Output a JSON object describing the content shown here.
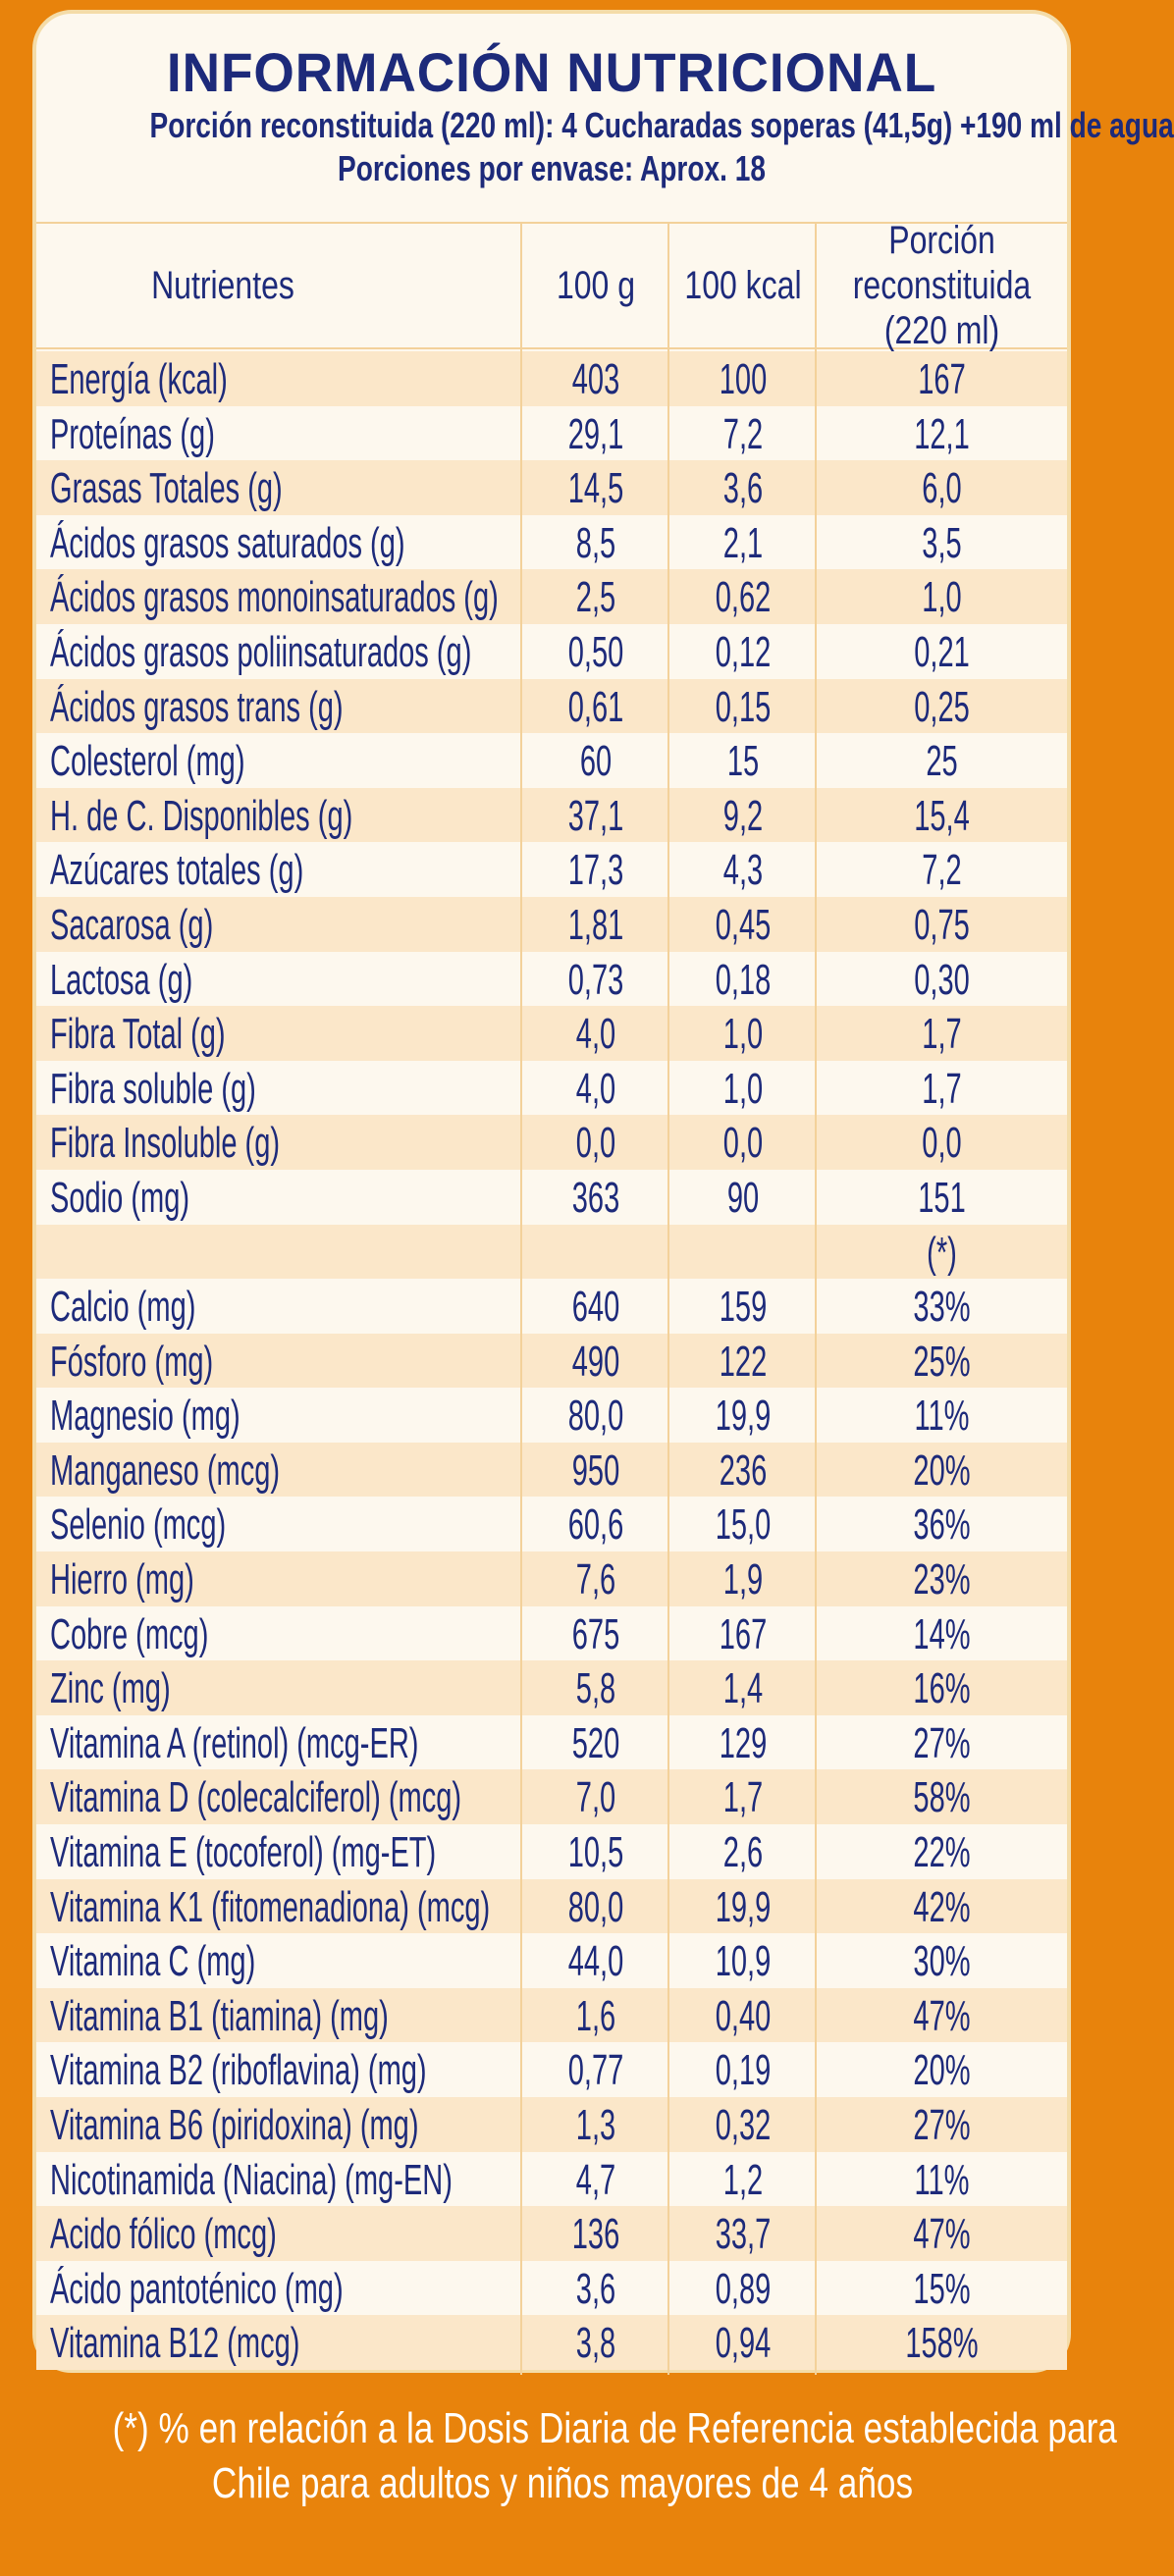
{
  "header": {
    "title": "INFORMACIÓN NUTRICIONAL",
    "portion_line": "Porción reconstituida (220 ml): 4 Cucharadas soperas (41,5g) +190 ml de agua",
    "servings_line": "Porciones por envase: Aprox. 18"
  },
  "columns": {
    "nutrient": "Nutrientes",
    "per100g": "100 g",
    "per100kcal": "100 kcal",
    "portion_l1": "Porción reconstituida",
    "portion_l2": "(220 ml)"
  },
  "rows": [
    {
      "name": "Energía (kcal)",
      "g100": "403",
      "kcal100": "100",
      "portion": "167"
    },
    {
      "name": "Proteínas (g)",
      "g100": "29,1",
      "kcal100": "7,2",
      "portion": "12,1"
    },
    {
      "name": "Grasas Totales (g)",
      "g100": "14,5",
      "kcal100": "3,6",
      "portion": "6,0"
    },
    {
      "name": "Ácidos grasos saturados (g)",
      "g100": "8,5",
      "kcal100": "2,1",
      "portion": "3,5"
    },
    {
      "name": "Ácidos grasos monoinsaturados (g)",
      "g100": "2,5",
      "kcal100": "0,62",
      "portion": "1,0"
    },
    {
      "name": "Ácidos grasos poliinsaturados (g)",
      "g100": "0,50",
      "kcal100": "0,12",
      "portion": "0,21"
    },
    {
      "name": "Ácidos grasos trans (g)",
      "g100": "0,61",
      "kcal100": "0,15",
      "portion": "0,25"
    },
    {
      "name": "Colesterol (mg)",
      "g100": "60",
      "kcal100": "15",
      "portion": "25"
    },
    {
      "name": "H. de C. Disponibles (g)",
      "g100": "37,1",
      "kcal100": "9,2",
      "portion": "15,4"
    },
    {
      "name": "Azúcares totales (g)",
      "g100": "17,3",
      "kcal100": "4,3",
      "portion": "7,2"
    },
    {
      "name": "Sacarosa (g)",
      "g100": "1,81",
      "kcal100": "0,45",
      "portion": "0,75"
    },
    {
      "name": "Lactosa (g)",
      "g100": "0,73",
      "kcal100": "0,18",
      "portion": "0,30"
    },
    {
      "name": "Fibra Total (g)",
      "g100": "4,0",
      "kcal100": "1,0",
      "portion": "1,7"
    },
    {
      "name": "Fibra soluble (g)",
      "g100": "4,0",
      "kcal100": "1,0",
      "portion": "1,7"
    },
    {
      "name": "Fibra Insoluble (g)",
      "g100": "0,0",
      "kcal100": "0,0",
      "portion": "0,0"
    },
    {
      "name": "Sodio (mg)",
      "g100": "363",
      "kcal100": "90",
      "portion": "151"
    },
    {
      "name": "",
      "g100": "",
      "kcal100": "",
      "portion": "(*)"
    },
    {
      "name": "Calcio (mg)",
      "g100": "640",
      "kcal100": "159",
      "portion": "33%"
    },
    {
      "name": "Fósforo (mg)",
      "g100": "490",
      "kcal100": "122",
      "portion": "25%"
    },
    {
      "name": "Magnesio (mg)",
      "g100": "80,0",
      "kcal100": "19,9",
      "portion": "11%"
    },
    {
      "name": "Manganeso (mcg)",
      "g100": "950",
      "kcal100": "236",
      "portion": "20%"
    },
    {
      "name": "Selenio (mcg)",
      "g100": "60,6",
      "kcal100": "15,0",
      "portion": "36%"
    },
    {
      "name": "Hierro (mg)",
      "g100": "7,6",
      "kcal100": "1,9",
      "portion": "23%"
    },
    {
      "name": "Cobre (mcg)",
      "g100": "675",
      "kcal100": "167",
      "portion": "14%"
    },
    {
      "name": "Zinc (mg)",
      "g100": "5,8",
      "kcal100": "1,4",
      "portion": "16%"
    },
    {
      "name": "Vitamina A (retinol) (mcg-ER)",
      "g100": "520",
      "kcal100": "129",
      "portion": "27%"
    },
    {
      "name": "Vitamina D (colecalciferol) (mcg)",
      "g100": "7,0",
      "kcal100": "1,7",
      "portion": "58%"
    },
    {
      "name": "Vitamina E (tocoferol) (mg-ET)",
      "g100": "10,5",
      "kcal100": "2,6",
      "portion": "22%"
    },
    {
      "name": "Vitamina K1 (fitomenadiona) (mcg)",
      "g100": "80,0",
      "kcal100": "19,9",
      "portion": "42%"
    },
    {
      "name": "Vitamina C (mg)",
      "g100": "44,0",
      "kcal100": "10,9",
      "portion": "30%"
    },
    {
      "name": "Vitamina B1 (tiamina) (mg)",
      "g100": "1,6",
      "kcal100": "0,40",
      "portion": "47%"
    },
    {
      "name": "Vitamina B2 (riboflavina) (mg)",
      "g100": "0,77",
      "kcal100": "0,19",
      "portion": "20%"
    },
    {
      "name": "Vitamina B6 (piridoxina) (mg)",
      "g100": "1,3",
      "kcal100": "0,32",
      "portion": "27%"
    },
    {
      "name": "Nicotinamida (Niacina) (mg-EN)",
      "g100": "4,7",
      "kcal100": "1,2",
      "portion": "11%"
    },
    {
      "name": "Acido fólico (mcg)",
      "g100": "136",
      "kcal100": "33,7",
      "portion": "47%"
    },
    {
      "name": "Ácido pantoténico (mg)",
      "g100": "3,6",
      "kcal100": "0,89",
      "portion": "15%"
    },
    {
      "name": "Vitamina B12 (mcg)",
      "g100": "3,8",
      "kcal100": "0,94",
      "portion": "158%"
    }
  ],
  "footer": {
    "line1": "(*) % en relación a la Dosis Diaria de Referencia establecida para",
    "line2": "Chile para adultos y niños mayores de 4 años"
  },
  "colors": {
    "background": "#e8830c",
    "card": "#fdf8ee",
    "stripe": "#fbe7c9",
    "text": "#1d2a7a"
  }
}
